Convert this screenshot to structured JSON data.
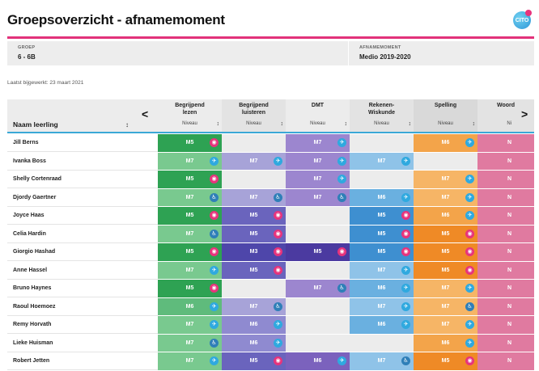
{
  "header": {
    "title": "Groepsoverzicht - afnamemoment",
    "logo_text": "CITO"
  },
  "info": {
    "group_label": "GROEP",
    "group_value": "6 - 6B",
    "moment_label": "AFNAMEMOMENT",
    "moment_value": "Medio 2019-2020"
  },
  "updated": "Laatst bijgewerkt: 23 maart 2021",
  "table": {
    "name_header": "Naam leerling",
    "sort_glyph": "↕",
    "prev_arrow": "<",
    "next_arrow": ">",
    "niveau_label": "Niveau",
    "subjects": [
      {
        "name_line1": "Begrijpend",
        "name_line2": "lezen"
      },
      {
        "name_line1": "Begrijpend",
        "name_line2": "luisteren"
      },
      {
        "name_line1": "DMT",
        "name_line2": ""
      },
      {
        "name_line1": "Rekenen-",
        "name_line2": "Wiskunde"
      },
      {
        "name_line1": "Spelling",
        "name_line2": ""
      },
      {
        "name_line1": "Woord",
        "name_line2": ""
      }
    ],
    "niveau_short": "Ni",
    "pupils": [
      {
        "name": "Jill Berns"
      },
      {
        "name": "Ivanka Boss"
      },
      {
        "name": "Shelly Cortenraad"
      },
      {
        "name": "Djordy Gaertner"
      },
      {
        "name": "Joyce Haas"
      },
      {
        "name": "Celia Hardin"
      },
      {
        "name": "Giorgio Hashad"
      },
      {
        "name": "Anne Hassel"
      },
      {
        "name": "Bruno Haynes"
      },
      {
        "name": "Raoul Hoemoez"
      },
      {
        "name": "Remy Horvath"
      },
      {
        "name": "Lieke Huisman"
      },
      {
        "name": "Robert Jetten"
      }
    ],
    "grid_cells": [
      [
        {
          "v": "M5",
          "icon": "eye"
        },
        {
          "v": "",
          "icon": ""
        },
        {
          "v": "M7",
          "icon": "plane"
        },
        {
          "v": "",
          "icon": ""
        },
        {
          "v": "M6",
          "icon": "plane"
        },
        {
          "v": "N",
          "icon": ""
        }
      ],
      [
        {
          "v": "M7",
          "icon": "plane"
        },
        {
          "v": "M7",
          "icon": "plane"
        },
        {
          "v": "M7",
          "icon": "plane"
        },
        {
          "v": "M7",
          "icon": "plane"
        },
        {
          "v": "",
          "icon": ""
        },
        {
          "v": "N",
          "icon": ""
        }
      ],
      [
        {
          "v": "M5",
          "icon": "eye"
        },
        {
          "v": "",
          "icon": ""
        },
        {
          "v": "M7",
          "icon": "plane"
        },
        {
          "v": "",
          "icon": ""
        },
        {
          "v": "M7",
          "icon": "plane"
        },
        {
          "v": "N",
          "icon": ""
        }
      ],
      [
        {
          "v": "M7",
          "icon": "runner"
        },
        {
          "v": "M7",
          "icon": "runner"
        },
        {
          "v": "M7",
          "icon": "runner"
        },
        {
          "v": "M6",
          "icon": "plane"
        },
        {
          "v": "M7",
          "icon": "plane"
        },
        {
          "v": "N",
          "icon": ""
        }
      ],
      [
        {
          "v": "M5",
          "icon": "eye"
        },
        {
          "v": "M5",
          "icon": "eye"
        },
        {
          "v": "",
          "icon": ""
        },
        {
          "v": "M5",
          "icon": "eye"
        },
        {
          "v": "M6",
          "icon": "plane"
        },
        {
          "v": "N",
          "icon": ""
        }
      ],
      [
        {
          "v": "M7",
          "icon": "runner"
        },
        {
          "v": "M5",
          "icon": "eye"
        },
        {
          "v": "",
          "icon": ""
        },
        {
          "v": "M5",
          "icon": "eye"
        },
        {
          "v": "M5",
          "icon": "eye"
        },
        {
          "v": "N",
          "icon": ""
        }
      ],
      [
        {
          "v": "M5",
          "icon": "eye"
        },
        {
          "v": "M3",
          "icon": "eye"
        },
        {
          "v": "M5",
          "icon": "eye"
        },
        {
          "v": "M5",
          "icon": "eye"
        },
        {
          "v": "M5",
          "icon": "eye"
        },
        {
          "v": "N",
          "icon": ""
        }
      ],
      [
        {
          "v": "M7",
          "icon": "plane"
        },
        {
          "v": "M5",
          "icon": "eye"
        },
        {
          "v": "",
          "icon": ""
        },
        {
          "v": "M7",
          "icon": "plane"
        },
        {
          "v": "M5",
          "icon": "eye"
        },
        {
          "v": "N",
          "icon": ""
        }
      ],
      [
        {
          "v": "M5",
          "icon": "eye"
        },
        {
          "v": "",
          "icon": ""
        },
        {
          "v": "M7",
          "icon": "runner"
        },
        {
          "v": "M6",
          "icon": "plane"
        },
        {
          "v": "M7",
          "icon": "plane"
        },
        {
          "v": "N",
          "icon": ""
        }
      ],
      [
        {
          "v": "M6",
          "icon": "plane"
        },
        {
          "v": "M7",
          "icon": "runner"
        },
        {
          "v": "",
          "icon": ""
        },
        {
          "v": "M7",
          "icon": "plane"
        },
        {
          "v": "M7",
          "icon": "runner"
        },
        {
          "v": "N",
          "icon": ""
        }
      ],
      [
        {
          "v": "M7",
          "icon": "plane"
        },
        {
          "v": "M6",
          "icon": "plane"
        },
        {
          "v": "",
          "icon": ""
        },
        {
          "v": "M6",
          "icon": "plane"
        },
        {
          "v": "M7",
          "icon": "plane"
        },
        {
          "v": "N",
          "icon": ""
        }
      ],
      [
        {
          "v": "M7",
          "icon": "runner"
        },
        {
          "v": "M6",
          "icon": "plane"
        },
        {
          "v": "",
          "icon": ""
        },
        {
          "v": "",
          "icon": ""
        },
        {
          "v": "M6",
          "icon": "plane"
        },
        {
          "v": "N",
          "icon": ""
        }
      ],
      [
        {
          "v": "M7",
          "icon": "plane"
        },
        {
          "v": "M5",
          "icon": "eye"
        },
        {
          "v": "M6",
          "icon": "plane"
        },
        {
          "v": "M7",
          "icon": "runner"
        },
        {
          "v": "M5",
          "icon": "eye"
        },
        {
          "v": "N",
          "icon": ""
        }
      ]
    ]
  },
  "colors": {
    "accent_pink": "#e2327a",
    "header_line_blue": "#3aa8d6",
    "badge_eye": "#e7337c",
    "badge_plane": "#2fa9df",
    "badge_runner": "#2f7fb8"
  }
}
